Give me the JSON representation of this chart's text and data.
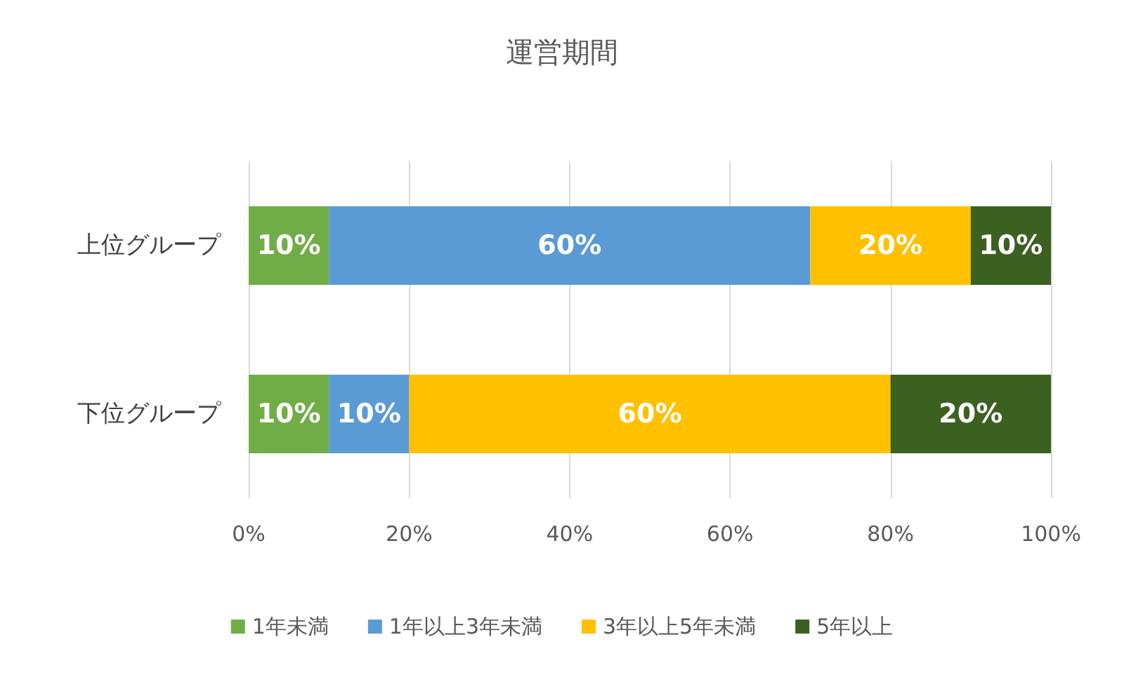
{
  "chart_data": {
    "type": "bar",
    "title": "運営期間",
    "orientation": "horizontal",
    "stacked": true,
    "categories": [
      "上位グループ",
      "下位グループ"
    ],
    "series": [
      {
        "name": "1年未満",
        "color": "#70ad47",
        "values": [
          10,
          10
        ],
        "value_labels": [
          "10%",
          "10%"
        ]
      },
      {
        "name": "1年以上3年未満",
        "color": "#5b9bd5",
        "values": [
          60,
          10
        ],
        "value_labels": [
          "60%",
          "10%"
        ]
      },
      {
        "name": "3年以上5年未満",
        "color": "#ffc000",
        "values": [
          20,
          60
        ],
        "value_labels": [
          "20%",
          "60%"
        ]
      },
      {
        "name": "5年以上",
        "color": "#3b6121",
        "values": [
          10,
          20
        ],
        "value_labels": [
          "10%",
          "20%"
        ]
      }
    ],
    "xlim": [
      0,
      100
    ],
    "xticks": [
      {
        "value": 0,
        "label": "0%"
      },
      {
        "value": 20,
        "label": "20%"
      },
      {
        "value": 40,
        "label": "40%"
      },
      {
        "value": 60,
        "label": "60%"
      },
      {
        "value": 80,
        "label": "80%"
      },
      {
        "value": 100,
        "label": "100%"
      }
    ],
    "grid": "x",
    "legend": "bottom"
  }
}
